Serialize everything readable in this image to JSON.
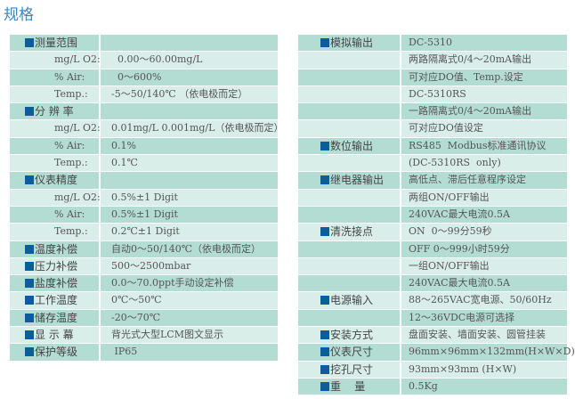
{
  "title": "规格",
  "left": [
    {
      "cat": "测量范围",
      "val": ""
    },
    {
      "sub": "mg/L O2:",
      "val": "  0.00～60.00mg/L"
    },
    {
      "sub": "% Air:",
      "val": "  0～600%"
    },
    {
      "sub": "Temp.:",
      "val": "-5～50/140℃ （依电极而定）"
    },
    {
      "cat": "分 辨 率",
      "val": ""
    },
    {
      "sub": "mg/L O2:",
      "val": "0.01mg/L 0.001mg/L（依电极而定）"
    },
    {
      "sub": "% Air:",
      "val": "0.1%"
    },
    {
      "sub": "Temp.:",
      "val": "0.1℃"
    },
    {
      "cat": "仪表精度",
      "val": ""
    },
    {
      "sub": "mg/L O2:",
      "val": "0.5%±1 Digit"
    },
    {
      "sub": "% Air:",
      "val": "0.5%±1 Digit"
    },
    {
      "sub": "Temp.:",
      "val": "0.2℃±1 Digit"
    },
    {
      "cat": "温度补偿",
      "val": "自动0～50/140℃（依电极而定）"
    },
    {
      "cat": "压力补偿",
      "val": "500～2500mbar"
    },
    {
      "cat": "盐度补偿",
      "val": "0.0～70.0ppt手动设定补偿"
    },
    {
      "cat": "工作温度",
      "val": "0℃～50℃"
    },
    {
      "cat": "储存温度",
      "val": "-20～70℃"
    },
    {
      "cat": "显 示 幕",
      "val": "背光式大型LCM图文显示"
    },
    {
      "cat": "保护等级",
      "val": " IP65"
    }
  ],
  "right": [
    {
      "cat": "模拟输出",
      "val": "DC-5310"
    },
    {
      "cat": "",
      "val": "两路隔离式0/4～20mA输出"
    },
    {
      "cat": "",
      "val": "可对应DO值、Temp.设定"
    },
    {
      "cat": "",
      "val": "DC-5310RS"
    },
    {
      "cat": "",
      "val": "一路隔离式0/4～20mA输出"
    },
    {
      "cat": "",
      "val": "可对应DO值设定"
    },
    {
      "cat": "数位输出",
      "val": "RS485  Modbus标准通讯协议"
    },
    {
      "cat": "",
      "val": "(DC-5310RS  only)"
    },
    {
      "cat": "继电器输出",
      "val": "高低点、滞后任意程序设定"
    },
    {
      "cat": "",
      "val": "两组ON/OFF输出"
    },
    {
      "cat": "",
      "val": "240VAC最大电流0.5A"
    },
    {
      "cat": "清洗接点",
      "val": "ON  0～99分59秒"
    },
    {
      "cat": "",
      "val": "OFF 0～999小时59分"
    },
    {
      "cat": "",
      "val": "一组ON/OFF输出"
    },
    {
      "cat": "",
      "val": "240VAC最大电流0.5A"
    },
    {
      "cat": "电源输入",
      "val": "88～265VAC宽电源、50/60Hz"
    },
    {
      "cat": "",
      "val": "12～36VDC电源可选择"
    },
    {
      "cat": "安装方式",
      "val": "盘面安装、墙面安装、圆管挂装"
    },
    {
      "cat": "仪表尺寸",
      "val": "96mm×96mm×132mm(H×W×D)"
    },
    {
      "cat": "挖孔尺寸",
      "val": "93mm×93mm (H×W)"
    },
    {
      "cat": "重    量",
      "val": "0.5Kg"
    }
  ],
  "colors": {
    "dark_row": "#b3dcd2",
    "light_row": "#d9eee9",
    "bullet": "#0c5d9c",
    "title": "#3b86c8"
  }
}
